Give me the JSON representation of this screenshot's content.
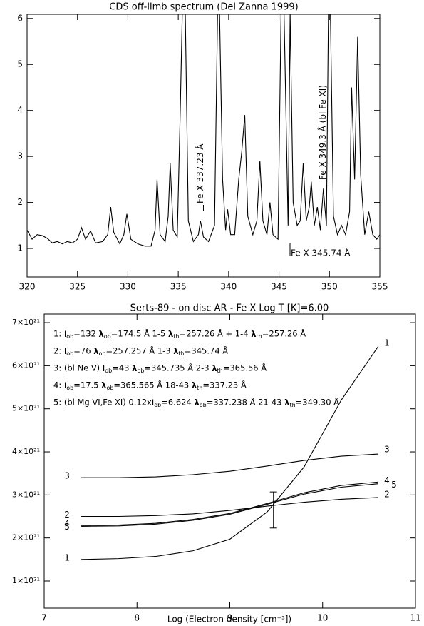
{
  "chart_data": [
    {
      "type": "line",
      "title": "CDS off-limb spectrum (Del Zanna 1999)",
      "x": [
        320,
        320.5,
        321,
        321.5,
        322,
        322.5,
        323,
        323.5,
        324,
        324.5,
        325,
        325.4,
        325.8,
        326.3,
        326.8,
        327.5,
        328,
        328.3,
        328.6,
        329.2,
        329.6,
        329.9,
        330.3,
        331,
        331.7,
        332.3,
        332.7,
        332.9,
        333.2,
        333.7,
        334,
        334.2,
        334.5,
        334.9,
        335.2,
        335.4,
        335.7,
        336,
        336.5,
        337,
        337.2,
        337.5,
        338,
        338.6,
        338.9,
        339.1,
        339.4,
        339.7,
        339.9,
        340.2,
        340.6,
        341,
        341.3,
        341.6,
        341.9,
        342.4,
        342.8,
        343.1,
        343.4,
        343.8,
        344.1,
        344.4,
        344.9,
        345.2,
        345.5,
        345.9,
        346.1,
        346.4,
        346.8,
        347.1,
        347.4,
        347.7,
        348,
        348.2,
        348.5,
        348.8,
        349.1,
        349.4,
        349.7,
        349.9,
        350.1,
        350.4,
        350.8,
        351.2,
        351.6,
        352,
        352.2,
        352.5,
        352.8,
        353.1,
        353.5,
        353.9,
        354.3,
        354.7,
        355
      ],
      "series": [
        {
          "color": "#000000",
          "values": [
            1.4,
            1.2,
            1.3,
            1.28,
            1.22,
            1.12,
            1.15,
            1.1,
            1.15,
            1.12,
            1.2,
            1.45,
            1.2,
            1.38,
            1.12,
            1.15,
            1.3,
            1.9,
            1.35,
            1.1,
            1.3,
            1.75,
            1.2,
            1.1,
            1.05,
            1.05,
            1.4,
            2.5,
            1.3,
            1.15,
            1.7,
            2.85,
            1.4,
            1.25,
            4.0,
            6.1,
            6.1,
            1.6,
            1.15,
            1.3,
            1.6,
            1.25,
            1.15,
            1.5,
            6.1,
            6.1,
            2.5,
            1.4,
            1.85,
            1.3,
            1.3,
            2.5,
            3.1,
            3.9,
            1.7,
            1.3,
            1.6,
            2.9,
            1.6,
            1.3,
            2.0,
            1.3,
            1.2,
            6.1,
            6.1,
            1.5,
            6.1,
            2.0,
            1.5,
            1.6,
            2.85,
            1.6,
            1.9,
            2.45,
            1.5,
            1.9,
            1.4,
            2.3,
            1.5,
            6.1,
            6.1,
            1.7,
            1.3,
            1.5,
            1.3,
            1.8,
            4.5,
            2.5,
            5.6,
            2.6,
            1.3,
            1.8,
            1.3,
            1.2,
            1.3
          ]
        }
      ],
      "xlim": [
        320,
        355
      ],
      "xticks": [
        320,
        325,
        330,
        335,
        340,
        345,
        350,
        355
      ],
      "ylim": [
        0.38,
        6.09
      ],
      "yticks": [
        1,
        2,
        3,
        4,
        5,
        6
      ],
      "annotations": [
        "Fe X 337.23 Å",
        "Fe X 349.3 Å (bl Fe XI)",
        "Fe X 345.74 Å"
      ]
    },
    {
      "type": "line",
      "title": "Serts-89 - on disc AR -  Fe X  Log T [K]=6.00",
      "xlabel": "Log (Electron density [cm⁻³])",
      "x": [
        7.4,
        7.8,
        8.2,
        8.6,
        9.0,
        9.4,
        9.8,
        10.2,
        10.6
      ],
      "series": [
        {
          "name": "1",
          "color": "#000000",
          "values": [
            1.5e+21,
            1.52e+21,
            1.57e+21,
            1.7e+21,
            1.97e+21,
            2.6e+21,
            3.65e+21,
            5.2e+21,
            6.45e+21
          ]
        },
        {
          "name": "2",
          "color": "#000000",
          "values": [
            2.5e+21,
            2.5e+21,
            2.52e+21,
            2.56e+21,
            2.64e+21,
            2.74e+21,
            2.83e+21,
            2.9e+21,
            2.94e+21
          ]
        },
        {
          "name": "3",
          "color": "#000000",
          "values": [
            3.4e+21,
            3.4e+21,
            3.42e+21,
            3.47e+21,
            3.55e+21,
            3.67e+21,
            3.8e+21,
            3.9e+21,
            3.95e+21
          ]
        },
        {
          "name": "4",
          "color": "#000000",
          "values": [
            2.29e+21,
            2.3e+21,
            2.34e+21,
            2.43e+21,
            2.57e+21,
            2.8e+21,
            3.05e+21,
            3.22e+21,
            3.3e+21
          ]
        },
        {
          "name": "5",
          "color": "#000000",
          "values": [
            2.27e+21,
            2.28e+21,
            2.32e+21,
            2.41e+21,
            2.55e+21,
            2.78e+21,
            3.02e+21,
            3.18e+21,
            3.26e+21
          ]
        }
      ],
      "xlim": [
        7,
        11
      ],
      "xticks": [
        7,
        8,
        9,
        10,
        11
      ],
      "ylim": [
        3.7e+20,
        7.2e+21
      ],
      "yticks": [
        {
          "value": 1e+21,
          "label": "1×10²¹"
        },
        {
          "value": 2e+21,
          "label": "2×10²¹"
        },
        {
          "value": 3e+21,
          "label": "3×10²¹"
        },
        {
          "value": 4e+21,
          "label": "4×10²¹"
        },
        {
          "value": 5e+21,
          "label": "5×10²¹"
        },
        {
          "value": 6e+21,
          "label": "6×10²¹"
        },
        {
          "value": 7e+21,
          "label": "7×10²¹"
        }
      ],
      "annotations": [
        "1: Iob=132 λob=174.5 Å  1-5 λth=257.26 Å + 1-4 λth=257.26 Å",
        "2: Iob=76 λob=257.257 Å 1-3 λth=345.74 Å",
        "3:  (bl Ne V) Iob=43 λob=345.735 Å 2-3 λth=365.56 Å",
        "4: Iob=17.5 λob=365.565 Å 18-43 λth=337.23 Å",
        "5:  (bl Mg VI,Fe XI) 0.12xIob=6.624 λob=337.238 Å 21-43 λth=349.30 Å"
      ],
      "errorbar": {
        "x": 9.47,
        "value": 2.65e+21,
        "error": 4.2e+20
      }
    }
  ]
}
